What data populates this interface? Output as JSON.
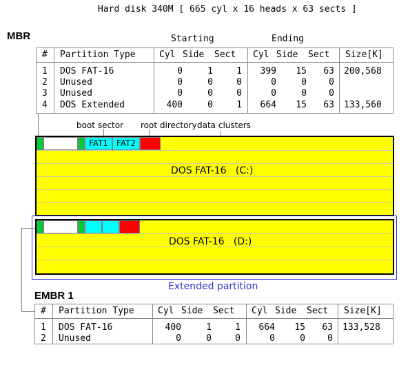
{
  "title": "Hard disk 340M [ 665 cyl x 16 heads x 63 sects ]",
  "mbr": {
    "label": "MBR",
    "starting_label": "Starting",
    "ending_label": "Ending",
    "headers": [
      "#",
      "Partition Type",
      "Cyl",
      "Side",
      "Sect",
      "Cyl",
      "Side",
      "Sect",
      "Size[K]"
    ],
    "rows": [
      [
        "1",
        "DOS FAT-16",
        "0",
        "1",
        "1",
        "399",
        "15",
        "63",
        "200,568"
      ],
      [
        "2",
        "Unused",
        "0",
        "0",
        "0",
        "0",
        "0",
        "0",
        ""
      ],
      [
        "3",
        "Unused",
        "0",
        "0",
        "0",
        "0",
        "0",
        "0",
        ""
      ],
      [
        "4",
        "DOS Extended",
        "400",
        "0",
        "1",
        "664",
        "15",
        "63",
        "133,560"
      ]
    ]
  },
  "labels": {
    "boot_sector": "boot sector",
    "root_directory": "root directory",
    "data_clusters": "data clusters",
    "fat1": "FAT1",
    "fat2": "FAT2",
    "drive_c": "DOS FAT-16   (C:)",
    "drive_d": "DOS FAT-16   (D:)",
    "extended_partition": "Extended partition"
  },
  "colors": {
    "partition_fill": "#ffff00",
    "mbr_block": "#00cc33",
    "boot_sector": "#00cc33",
    "fat": "#00ffff",
    "root_directory": "#ff0000",
    "extended_label": "#3333cc"
  },
  "embr": {
    "label": "EMBR 1",
    "headers": [
      "#",
      "Partition Type",
      "Cyl",
      "Side",
      "Sect",
      "Cyl",
      "Side",
      "Sect",
      "Size[K]"
    ],
    "rows": [
      [
        "1",
        "DOS FAT-16",
        "400",
        "1",
        "1",
        "664",
        "15",
        "63",
        "133,528"
      ],
      [
        "2",
        "Unused",
        "0",
        "0",
        "0",
        "0",
        "0",
        "0",
        ""
      ]
    ]
  }
}
